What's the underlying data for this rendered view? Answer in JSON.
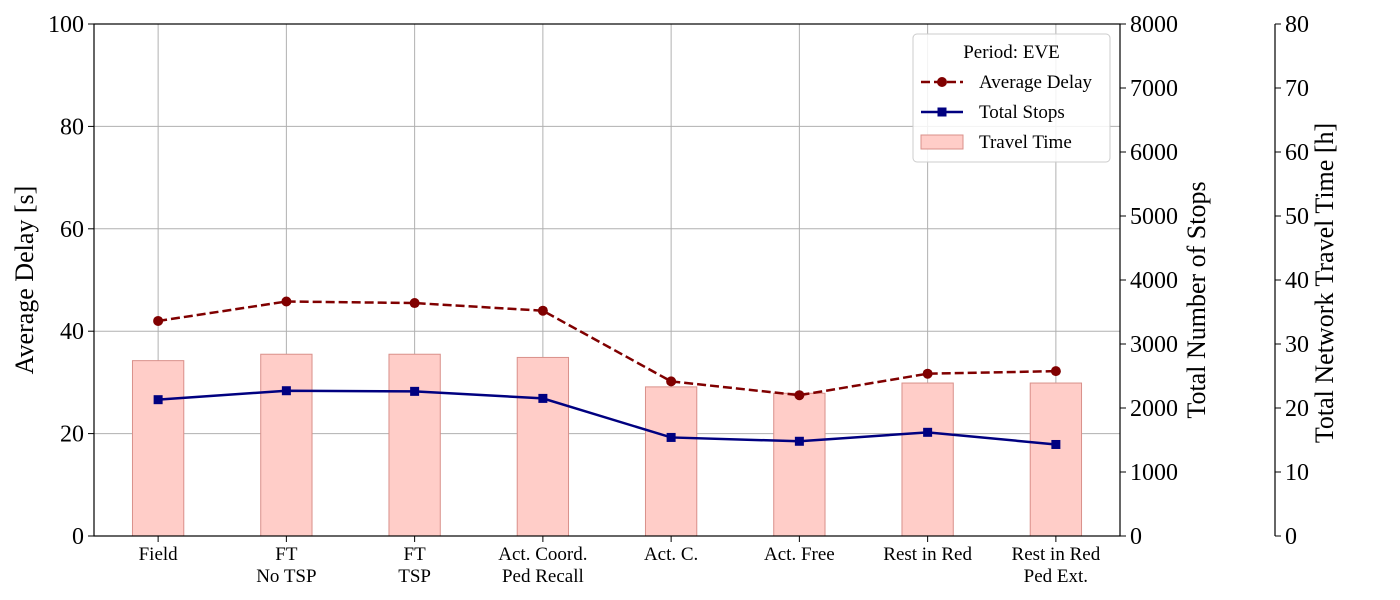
{
  "chart_data": {
    "type": "bar",
    "title": "",
    "categories": [
      [
        "Field"
      ],
      [
        "FT",
        "No TSP"
      ],
      [
        "FT",
        "TSP"
      ],
      [
        "Act. Coord.",
        "Ped Recall"
      ],
      [
        "Act. C."
      ],
      [
        "Act. Free"
      ],
      [
        "Rest in Red"
      ],
      [
        "Rest in Red",
        "Ped Ext."
      ]
    ],
    "axes": {
      "left": {
        "label": "Average Delay [s]",
        "range": [
          0,
          100
        ],
        "ticks": [
          0,
          20,
          40,
          60,
          80,
          100
        ]
      },
      "right": {
        "label": "Total Number of Stops",
        "range": [
          0,
          8000
        ],
        "ticks": [
          0,
          1000,
          2000,
          3000,
          4000,
          5000,
          6000,
          7000,
          8000
        ]
      },
      "right_outer": {
        "label": "Total Network Travel Time [h]",
        "range": [
          0,
          80
        ],
        "ticks": [
          0,
          10,
          20,
          30,
          40,
          50,
          60,
          70,
          80
        ]
      }
    },
    "grid": true,
    "legend": {
      "title": "Period: EVE",
      "placement": "top-right",
      "entries": [
        "Average Delay",
        "Total Stops",
        "Travel Time"
      ]
    },
    "series": [
      {
        "name": "Average Delay",
        "kind": "line",
        "style": "dashed",
        "marker": "circle",
        "axis": "left",
        "color": "#800000",
        "values": [
          42.0,
          45.8,
          45.5,
          44.0,
          30.2,
          27.5,
          31.7,
          32.2
        ]
      },
      {
        "name": "Total Stops",
        "kind": "line",
        "style": "solid",
        "marker": "square",
        "axis": "right",
        "color": "#000080",
        "values": [
          2130,
          2270,
          2260,
          2150,
          1540,
          1480,
          1620,
          1430
        ]
      },
      {
        "name": "Travel Time",
        "kind": "bar",
        "axis": "right_outer",
        "color": "#ffcdc8",
        "edge_color": "#d9908a",
        "values": [
          27.4,
          28.4,
          28.4,
          27.9,
          23.3,
          22.3,
          23.9,
          23.9
        ]
      }
    ]
  }
}
